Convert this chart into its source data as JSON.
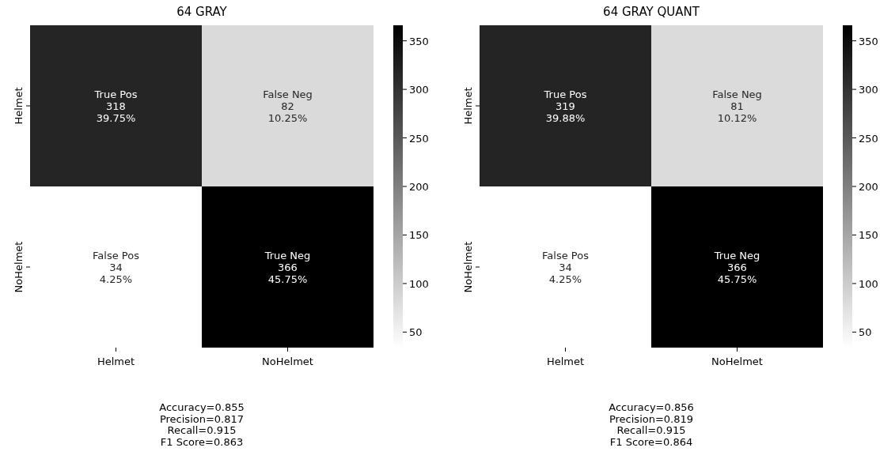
{
  "chart_data": [
    {
      "type": "heatmap",
      "title": "64 GRAY",
      "categories": [
        "Helmet",
        "NoHelmet"
      ],
      "y_categories": [
        "Helmet",
        "NoHelmet"
      ],
      "cells": [
        [
          318,
          82
        ],
        [
          34,
          366
        ]
      ],
      "cell_labels": [
        [
          "True Pos\n318\n39.75%",
          "False Neg\n82\n10.25%"
        ],
        [
          "False Pos\n34\n4.25%",
          "True Neg\n366\n45.75%"
        ]
      ],
      "clim": [
        34,
        366
      ],
      "cticks": [
        50,
        100,
        150,
        200,
        250,
        300,
        350
      ],
      "annotations": [
        "Accuracy=0.855\nPrecision=0.817\nRecall=0.915\nF1 Score=0.863"
      ]
    },
    {
      "type": "heatmap",
      "title": "64 GRAY QUANT",
      "categories": [
        "Helmet",
        "NoHelmet"
      ],
      "y_categories": [
        "Helmet",
        "NoHelmet"
      ],
      "cells": [
        [
          319,
          81
        ],
        [
          34,
          366
        ]
      ],
      "cell_labels": [
        [
          "True Pos\n319\n39.88%",
          "False Neg\n81\n10.12%"
        ],
        [
          "False Pos\n34\n4.25%",
          "True Neg\n366\n45.75%"
        ]
      ],
      "clim": [
        34,
        366
      ],
      "cticks": [
        50,
        100,
        150,
        200,
        250,
        300,
        350
      ],
      "annotations": [
        "Accuracy=0.856\nPrecision=0.819\nRecall=0.915\nF1 Score=0.864"
      ]
    }
  ]
}
